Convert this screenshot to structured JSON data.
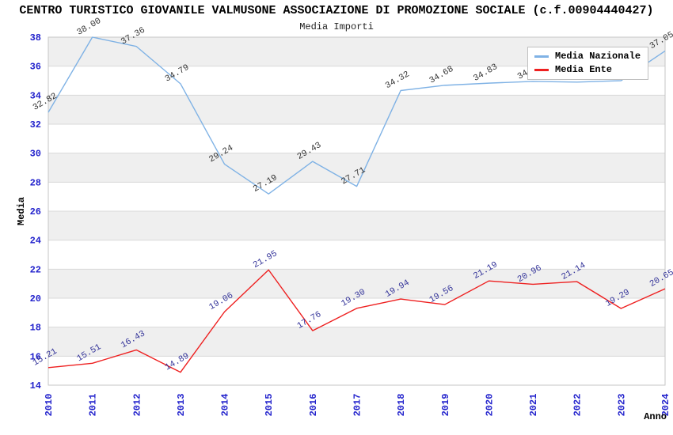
{
  "header": {
    "title": "CENTRO TURISTICO GIOVANILE VALMUSONE ASSOCIAZIONE DI PROMOZIONE SOCIALE (c.f.00904440427)"
  },
  "chart_data": {
    "type": "line",
    "title": "Media Importi",
    "xlabel": "Anno",
    "ylabel": "Media",
    "x_labels": [
      "2010",
      "2011",
      "2012",
      "2013",
      "2014",
      "2015",
      "2016",
      "2017",
      "2018",
      "2019",
      "2020",
      "2021",
      "2022",
      "2023",
      "2024"
    ],
    "ylim": [
      14,
      38
    ],
    "y_tick_step": 2,
    "grid": "alternating-horizontal-bands",
    "legend_position": "top-right-inside",
    "colors": {
      "axis_tick_labels": "#2222cc",
      "band_gray": "#efefef",
      "gridline": "#d8d8d8",
      "plot_border": "#c6c6c6"
    },
    "series": [
      {
        "name": "Media Nazionale",
        "color": "#7fb2e5",
        "label_color": "#333333",
        "values": [
          32.82,
          38.0,
          37.36,
          34.79,
          29.24,
          27.19,
          29.43,
          27.71,
          34.32,
          34.68,
          34.83,
          34.95,
          34.9,
          35.0,
          37.05
        ]
      },
      {
        "name": "Media Ente",
        "color": "#ee2020",
        "label_color": "#333399",
        "values": [
          15.21,
          15.51,
          16.43,
          14.89,
          19.06,
          21.95,
          17.76,
          19.3,
          19.94,
          19.56,
          21.19,
          20.96,
          21.14,
          19.29,
          20.65
        ]
      }
    ]
  }
}
